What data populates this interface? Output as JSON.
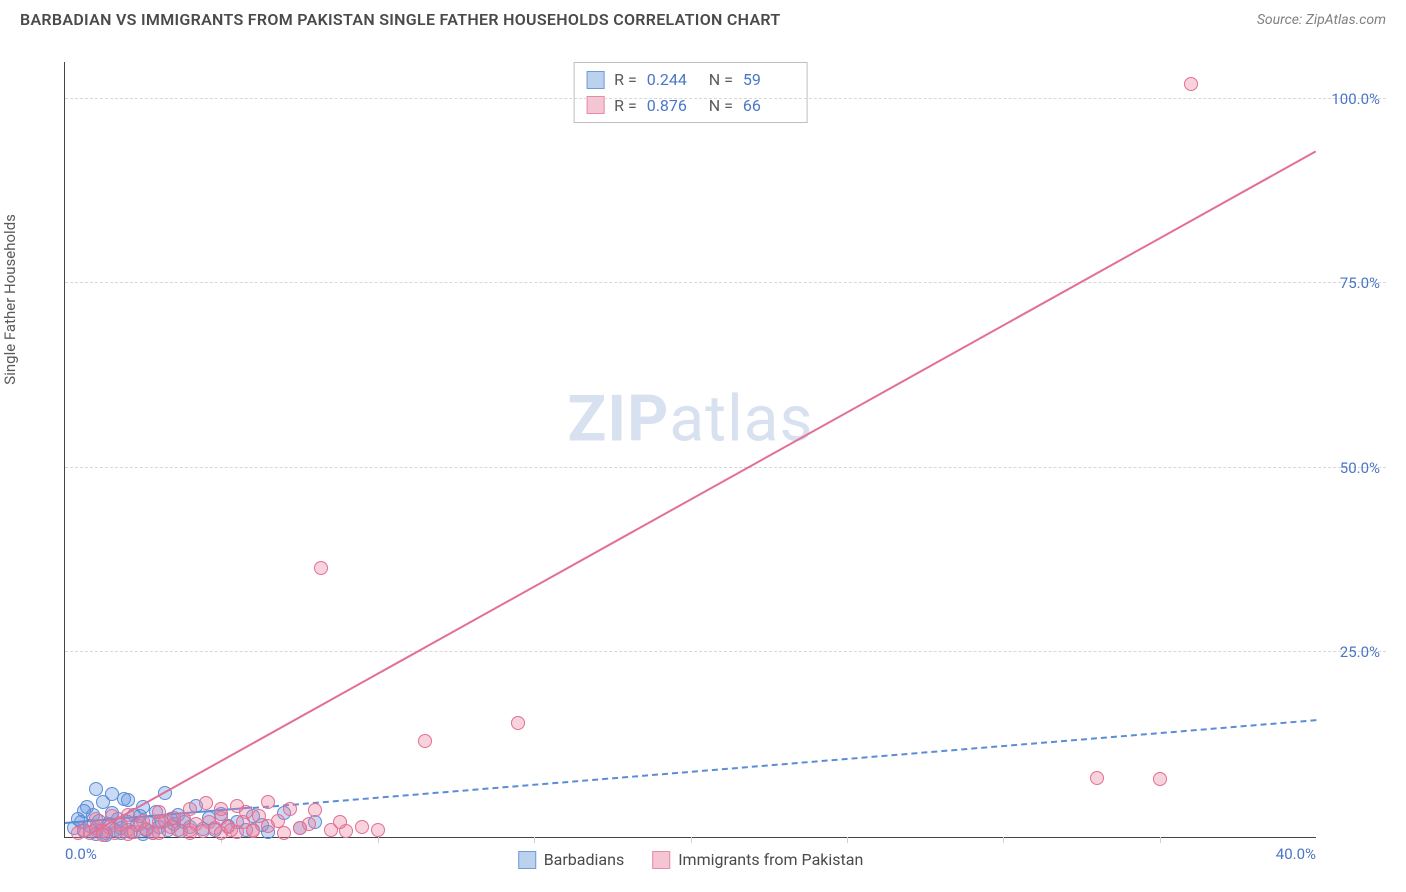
{
  "header": {
    "title": "BARBADIAN VS IMMIGRANTS FROM PAKISTAN SINGLE FATHER HOUSEHOLDS CORRELATION CHART",
    "source": "Source: ZipAtlas.com"
  },
  "y_axis_label": "Single Father Households",
  "watermark": {
    "part1": "ZIP",
    "part2": "atlas"
  },
  "chart": {
    "type": "scatter",
    "xlim": [
      0,
      40
    ],
    "ylim": [
      0,
      105
    ],
    "x_ticks": [
      {
        "value": 0,
        "label": "0.0%"
      },
      {
        "value": 40,
        "label": "40.0%"
      }
    ],
    "x_minor_ticks": [
      5,
      10,
      15,
      20,
      25,
      30,
      35
    ],
    "y_ticks": [
      {
        "value": 25,
        "label": "25.0%"
      },
      {
        "value": 50,
        "label": "50.0%"
      },
      {
        "value": 75,
        "label": "75.0%"
      },
      {
        "value": 100,
        "label": "100.0%"
      }
    ],
    "grid_color": "#d8d8d8",
    "background_color": "#ffffff",
    "series": [
      {
        "id": "barbadians",
        "label": "Barbadians",
        "fill": "rgba(100,150,225,0.35)",
        "stroke": "#5b8dd6",
        "swatch_fill": "#bcd1ee",
        "swatch_border": "#6f9cd9",
        "marker_radius": 7,
        "R": "0.244",
        "N": "59",
        "trend": {
          "x1": 0,
          "y1": 2.0,
          "x2": 40,
          "y2": 16.0,
          "width": 2,
          "style": "dashed",
          "solid_until_x": 6
        },
        "points": [
          [
            0.3,
            1.2
          ],
          [
            0.5,
            2.0
          ],
          [
            0.6,
            0.8
          ],
          [
            0.8,
            1.5
          ],
          [
            0.9,
            3.0
          ],
          [
            1.0,
            1.0
          ],
          [
            1.1,
            2.2
          ],
          [
            1.2,
            4.8
          ],
          [
            1.3,
            0.6
          ],
          [
            1.4,
            1.8
          ],
          [
            1.5,
            3.2
          ],
          [
            1.6,
            0.9
          ],
          [
            1.7,
            2.5
          ],
          [
            1.8,
            1.2
          ],
          [
            1.9,
            5.2
          ],
          [
            2.0,
            2.0
          ],
          [
            2.1,
            0.7
          ],
          [
            2.2,
            3.0
          ],
          [
            2.3,
            1.6
          ],
          [
            2.4,
            2.8
          ],
          [
            2.5,
            4.0
          ],
          [
            2.6,
            1.0
          ],
          [
            2.7,
            1.9
          ],
          [
            2.8,
            0.5
          ],
          [
            2.9,
            3.4
          ],
          [
            3.0,
            1.3
          ],
          [
            3.1,
            2.1
          ],
          [
            3.2,
            6.0
          ],
          [
            3.3,
            1.0
          ],
          [
            3.4,
            2.4
          ],
          [
            3.5,
            1.7
          ],
          [
            3.6,
            3.0
          ],
          [
            3.7,
            0.8
          ],
          [
            3.8,
            2.0
          ],
          [
            4.0,
            1.4
          ],
          [
            4.2,
            4.2
          ],
          [
            4.4,
            1.1
          ],
          [
            4.6,
            2.6
          ],
          [
            4.8,
            0.9
          ],
          [
            5.0,
            3.1
          ],
          [
            5.2,
            1.5
          ],
          [
            5.5,
            2.0
          ],
          [
            5.8,
            1.0
          ],
          [
            6.0,
            2.8
          ],
          [
            6.3,
            1.6
          ],
          [
            6.5,
            0.7
          ],
          [
            7.0,
            3.2
          ],
          [
            7.5,
            1.2
          ],
          [
            8.0,
            2.1
          ],
          [
            1.0,
            6.5
          ],
          [
            1.5,
            5.8
          ],
          [
            2.0,
            5.0
          ],
          [
            0.7,
            4.0
          ],
          [
            0.4,
            2.5
          ],
          [
            0.6,
            3.5
          ],
          [
            1.0,
            0.4
          ],
          [
            1.3,
            0.3
          ],
          [
            1.8,
            0.6
          ],
          [
            2.5,
            0.4
          ]
        ]
      },
      {
        "id": "pakistan",
        "label": "Immigrants from Pakistan",
        "fill": "rgba(235,130,160,0.35)",
        "stroke": "#e36f94",
        "swatch_fill": "#f4c6d3",
        "swatch_border": "#e88aa8",
        "marker_radius": 7,
        "R": "0.876",
        "N": "66",
        "trend": {
          "x1": 0.8,
          "y1": 0.5,
          "x2": 40,
          "y2": 93.0,
          "width": 2,
          "style": "solid"
        },
        "points": [
          [
            0.4,
            0.5
          ],
          [
            0.6,
            1.0
          ],
          [
            0.8,
            0.6
          ],
          [
            1.0,
            1.2
          ],
          [
            1.2,
            0.8
          ],
          [
            1.4,
            1.4
          ],
          [
            1.6,
            0.5
          ],
          [
            1.8,
            1.6
          ],
          [
            2.0,
            1.0
          ],
          [
            2.2,
            0.7
          ],
          [
            2.4,
            1.8
          ],
          [
            2.6,
            1.1
          ],
          [
            2.8,
            0.6
          ],
          [
            3.0,
            2.0
          ],
          [
            3.2,
            2.2
          ],
          [
            3.4,
            1.3
          ],
          [
            3.6,
            0.9
          ],
          [
            3.8,
            2.4
          ],
          [
            4.0,
            1.0
          ],
          [
            4.2,
            1.7
          ],
          [
            4.4,
            0.8
          ],
          [
            4.6,
            2.0
          ],
          [
            4.8,
            1.2
          ],
          [
            5.0,
            2.6
          ],
          [
            5.2,
            1.4
          ],
          [
            5.5,
            0.7
          ],
          [
            5.8,
            3.4
          ],
          [
            6.0,
            1.0
          ],
          [
            6.2,
            2.8
          ],
          [
            6.5,
            1.5
          ],
          [
            7.0,
            0.6
          ],
          [
            7.2,
            3.8
          ],
          [
            7.5,
            1.2
          ],
          [
            8.0,
            3.6
          ],
          [
            8.5,
            1.0
          ],
          [
            9.0,
            0.8
          ],
          [
            9.5,
            1.4
          ],
          [
            10.0,
            0.9
          ],
          [
            1.0,
            2.4
          ],
          [
            1.5,
            2.8
          ],
          [
            2.0,
            3.0
          ],
          [
            2.5,
            2.2
          ],
          [
            3.0,
            3.4
          ],
          [
            3.5,
            2.6
          ],
          [
            4.0,
            3.8
          ],
          [
            1.2,
            0.3
          ],
          [
            2.0,
            0.4
          ],
          [
            3.0,
            0.5
          ],
          [
            4.0,
            0.6
          ],
          [
            5.0,
            0.5
          ],
          [
            6.0,
            0.8
          ],
          [
            4.5,
            4.6
          ],
          [
            5.5,
            4.2
          ],
          [
            6.5,
            4.8
          ],
          [
            8.2,
            36.5
          ],
          [
            11.5,
            13.0
          ],
          [
            14.5,
            15.5
          ],
          [
            33.0,
            8.0
          ],
          [
            35.0,
            7.8
          ],
          [
            36.0,
            102.0
          ],
          [
            5.0,
            3.8
          ],
          [
            5.3,
            1.0
          ],
          [
            5.7,
            2.0
          ],
          [
            6.8,
            2.2
          ],
          [
            7.8,
            1.8
          ],
          [
            8.8,
            2.0
          ]
        ]
      }
    ]
  },
  "legend_labels": {
    "R_prefix": "R  =",
    "N_prefix": "N  ="
  }
}
